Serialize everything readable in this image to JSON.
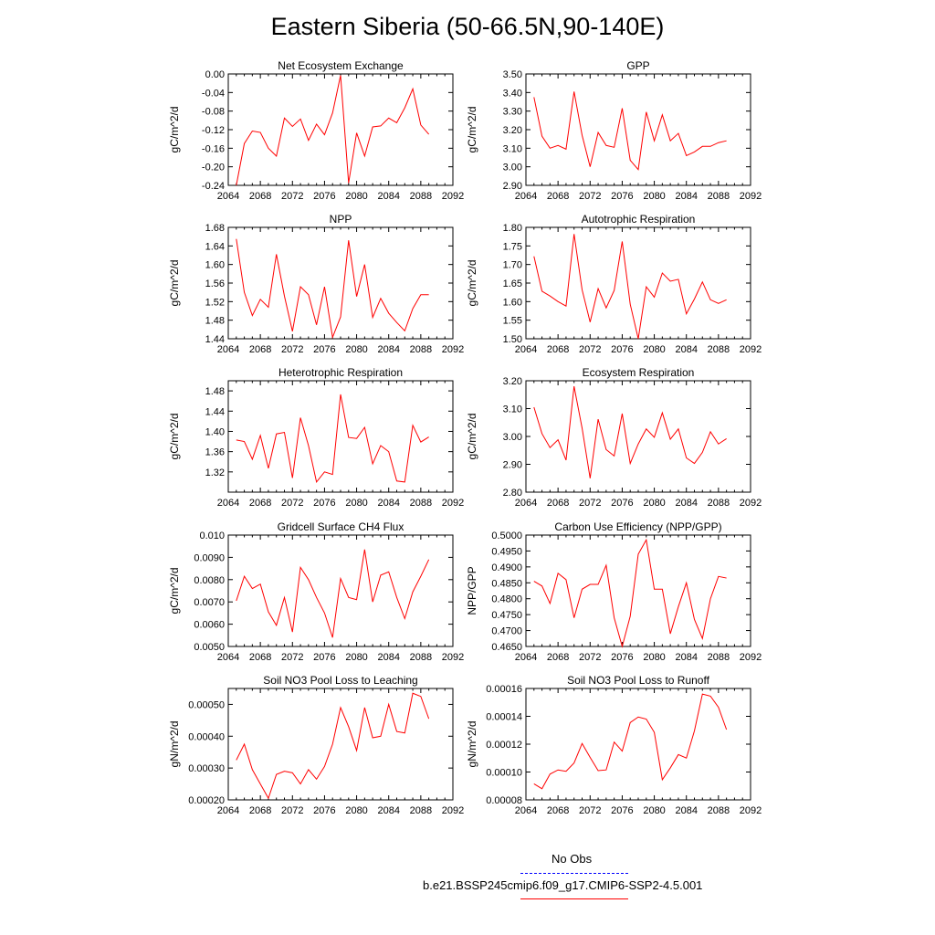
{
  "title": "Eastern Siberia (50-66.5N,90-140E)",
  "colors": {
    "model_line": "#ff0000",
    "obs_line": "#0000ff",
    "axis": "#000000"
  },
  "legend": {
    "obs_label": "No Obs",
    "model_label": "b.e21.BSSP245cmip6.f09_g17.CMIP6-SSP2-4.5.001"
  },
  "chart_data": [
    {
      "type": "line",
      "title": "Net Ecosystem Exchange",
      "xlabel": "",
      "ylabel": "gC/m^2/d",
      "xlim": [
        2064,
        2092
      ],
      "xticks": [
        2064,
        2068,
        2072,
        2076,
        2080,
        2084,
        2088,
        2092
      ],
      "ylim": [
        -0.24,
        0.0
      ],
      "yticks": [
        "-0.24",
        "-0.20",
        "-0.16",
        "-0.12",
        "-0.08",
        "-0.04",
        "0.00"
      ],
      "x": [
        2065,
        2066,
        2067,
        2068,
        2069,
        2070,
        2071,
        2072,
        2073,
        2074,
        2075,
        2076,
        2077,
        2078,
        2079,
        2080,
        2081,
        2082,
        2083,
        2084,
        2085,
        2086,
        2087,
        2088,
        2089
      ],
      "values": [
        -0.24,
        -0.15,
        -0.123,
        -0.126,
        -0.16,
        -0.177,
        -0.095,
        -0.113,
        -0.097,
        -0.143,
        -0.108,
        -0.131,
        -0.084,
        -0.003,
        -0.235,
        -0.127,
        -0.177,
        -0.114,
        -0.112,
        -0.095,
        -0.105,
        -0.073,
        -0.032,
        -0.11,
        -0.13
      ]
    },
    {
      "type": "line",
      "title": "GPP",
      "xlabel": "",
      "ylabel": "gC/m^2/d",
      "xlim": [
        2064,
        2092
      ],
      "xticks": [
        2064,
        2068,
        2072,
        2076,
        2080,
        2084,
        2088,
        2092
      ],
      "ylim": [
        2.9,
        3.5
      ],
      "yticks": [
        "2.90",
        "3.00",
        "3.10",
        "3.20",
        "3.30",
        "3.40",
        "3.50"
      ],
      "x": [
        2065,
        2066,
        2067,
        2068,
        2069,
        2070,
        2071,
        2072,
        2073,
        2074,
        2075,
        2076,
        2077,
        2078,
        2079,
        2080,
        2081,
        2082,
        2083,
        2084,
        2085,
        2086,
        2087,
        2088,
        2089
      ],
      "values": [
        3.375,
        3.165,
        3.1,
        3.115,
        3.095,
        3.405,
        3.17,
        3.0,
        3.185,
        3.115,
        3.105,
        3.315,
        3.035,
        2.985,
        3.295,
        3.14,
        3.28,
        3.14,
        3.18,
        3.06,
        3.08,
        3.11,
        3.11,
        3.13,
        3.14
      ]
    },
    {
      "type": "line",
      "title": "NPP",
      "xlabel": "",
      "ylabel": "gC/m^2/d",
      "xlim": [
        2064,
        2092
      ],
      "xticks": [
        2064,
        2068,
        2072,
        2076,
        2080,
        2084,
        2088,
        2092
      ],
      "ylim": [
        1.44,
        1.68
      ],
      "yticks": [
        "1.44",
        "1.48",
        "1.52",
        "1.56",
        "1.60",
        "1.64",
        "1.68"
      ],
      "x": [
        2065,
        2066,
        2067,
        2068,
        2069,
        2070,
        2071,
        2072,
        2073,
        2074,
        2075,
        2076,
        2077,
        2078,
        2079,
        2080,
        2081,
        2082,
        2083,
        2084,
        2085,
        2086,
        2087,
        2088,
        2089
      ],
      "values": [
        1.655,
        1.54,
        1.49,
        1.525,
        1.508,
        1.622,
        1.532,
        1.456,
        1.552,
        1.535,
        1.47,
        1.552,
        1.443,
        1.487,
        1.652,
        1.531,
        1.6,
        1.486,
        1.527,
        1.495,
        1.475,
        1.457,
        1.505,
        1.535,
        1.535
      ]
    },
    {
      "type": "line",
      "title": "Autotrophic Respiration",
      "xlabel": "",
      "ylabel": "gC/m^2/d",
      "xlim": [
        2064,
        2092
      ],
      "xticks": [
        2064,
        2068,
        2072,
        2076,
        2080,
        2084,
        2088,
        2092
      ],
      "ylim": [
        1.5,
        1.8
      ],
      "yticks": [
        "1.50",
        "1.55",
        "1.60",
        "1.65",
        "1.70",
        "1.75",
        "1.80"
      ],
      "x": [
        2065,
        2066,
        2067,
        2068,
        2069,
        2070,
        2071,
        2072,
        2073,
        2074,
        2075,
        2076,
        2077,
        2078,
        2079,
        2080,
        2081,
        2082,
        2083,
        2084,
        2085,
        2086,
        2087,
        2088,
        2089
      ],
      "values": [
        1.722,
        1.628,
        1.615,
        1.6,
        1.588,
        1.782,
        1.632,
        1.545,
        1.635,
        1.583,
        1.63,
        1.762,
        1.593,
        1.5,
        1.64,
        1.612,
        1.677,
        1.655,
        1.66,
        1.567,
        1.607,
        1.653,
        1.605,
        1.595,
        1.605
      ]
    },
    {
      "type": "line",
      "title": "Heterotrophic Respiration",
      "xlabel": "",
      "ylabel": "gC/m^2/d",
      "xlim": [
        2064,
        2092
      ],
      "xticks": [
        2064,
        2068,
        2072,
        2076,
        2080,
        2084,
        2088,
        2092
      ],
      "ylim": [
        1.28,
        1.5
      ],
      "yticks": [
        "1.32",
        "1.36",
        "1.40",
        "1.44",
        "1.48"
      ],
      "x": [
        2065,
        2066,
        2067,
        2068,
        2069,
        2070,
        2071,
        2072,
        2073,
        2074,
        2075,
        2076,
        2077,
        2078,
        2079,
        2080,
        2081,
        2082,
        2083,
        2084,
        2085,
        2086,
        2087,
        2088,
        2089
      ],
      "values": [
        1.383,
        1.38,
        1.345,
        1.392,
        1.327,
        1.395,
        1.398,
        1.308,
        1.427,
        1.372,
        1.3,
        1.32,
        1.315,
        1.473,
        1.388,
        1.386,
        1.408,
        1.336,
        1.372,
        1.36,
        1.302,
        1.3,
        1.412,
        1.379,
        1.389
      ]
    },
    {
      "type": "line",
      "title": "Ecosystem Respiration",
      "xlabel": "",
      "ylabel": "gC/m^2/d",
      "xlim": [
        2064,
        2092
      ],
      "xticks": [
        2064,
        2068,
        2072,
        2076,
        2080,
        2084,
        2088,
        2092
      ],
      "ylim": [
        2.8,
        3.2
      ],
      "yticks": [
        "2.80",
        "2.90",
        "3.00",
        "3.10",
        "3.20"
      ],
      "x": [
        2065,
        2066,
        2067,
        2068,
        2069,
        2070,
        2071,
        2072,
        2073,
        2074,
        2075,
        2076,
        2077,
        2078,
        2079,
        2080,
        2081,
        2082,
        2083,
        2084,
        2085,
        2086,
        2087,
        2088,
        2089
      ],
      "values": [
        3.105,
        3.01,
        2.96,
        2.988,
        2.915,
        3.18,
        3.03,
        2.85,
        3.062,
        2.953,
        2.93,
        3.082,
        2.903,
        2.973,
        3.027,
        2.997,
        3.085,
        2.99,
        3.027,
        2.923,
        2.903,
        2.943,
        3.017,
        2.973,
        2.992
      ]
    },
    {
      "type": "line",
      "title": "Gridcell Surface CH4 Flux",
      "xlabel": "",
      "ylabel": "gC/m^2/d",
      "xlim": [
        2064,
        2092
      ],
      "xticks": [
        2064,
        2068,
        2072,
        2076,
        2080,
        2084,
        2088,
        2092
      ],
      "ylim": [
        0.005,
        0.01
      ],
      "yticks": [
        "0.0050",
        "0.0060",
        "0.0070",
        "0.0080",
        "0.0090",
        "0.010"
      ],
      "x": [
        2065,
        2066,
        2067,
        2068,
        2069,
        2070,
        2071,
        2072,
        2073,
        2074,
        2075,
        2076,
        2077,
        2078,
        2079,
        2080,
        2081,
        2082,
        2083,
        2084,
        2085,
        2086,
        2087,
        2088,
        2089
      ],
      "values": [
        0.00705,
        0.00815,
        0.0076,
        0.0078,
        0.00655,
        0.00595,
        0.0072,
        0.00565,
        0.00855,
        0.008,
        0.0072,
        0.0065,
        0.0054,
        0.00805,
        0.0072,
        0.0071,
        0.00935,
        0.007,
        0.0082,
        0.00835,
        0.0072,
        0.00625,
        0.00745,
        0.00815,
        0.0089
      ]
    },
    {
      "type": "line",
      "title": "Carbon Use Efficiency (NPP/GPP)",
      "xlabel": "",
      "ylabel": "NPP/GPP",
      "xlim": [
        2064,
        2092
      ],
      "xticks": [
        2064,
        2068,
        2072,
        2076,
        2080,
        2084,
        2088,
        2092
      ],
      "ylim": [
        0.465,
        0.5
      ],
      "yticks": [
        "0.4650",
        "0.4700",
        "0.4750",
        "0.4800",
        "0.4850",
        "0.4900",
        "0.4950",
        "0.5000"
      ],
      "x": [
        2065,
        2066,
        2067,
        2068,
        2069,
        2070,
        2071,
        2072,
        2073,
        2074,
        2075,
        2076,
        2077,
        2078,
        2079,
        2080,
        2081,
        2082,
        2083,
        2084,
        2085,
        2086,
        2087,
        2088,
        2089
      ],
      "values": [
        0.4855,
        0.484,
        0.4785,
        0.488,
        0.486,
        0.474,
        0.483,
        0.4845,
        0.4845,
        0.4905,
        0.474,
        0.465,
        0.4745,
        0.494,
        0.4985,
        0.483,
        0.483,
        0.469,
        0.4775,
        0.485,
        0.4735,
        0.4675,
        0.48,
        0.487,
        0.4865
      ]
    },
    {
      "type": "line",
      "title": "Soil NO3 Pool Loss to Leaching",
      "xlabel": "",
      "ylabel": "gN/m^2/d",
      "xlim": [
        2064,
        2092
      ],
      "xticks": [
        2064,
        2068,
        2072,
        2076,
        2080,
        2084,
        2088,
        2092
      ],
      "ylim": [
        0.0002,
        0.00055
      ],
      "yticks": [
        "0.00020",
        "0.00030",
        "0.00040",
        "0.00050"
      ],
      "x": [
        2065,
        2066,
        2067,
        2068,
        2069,
        2070,
        2071,
        2072,
        2073,
        2074,
        2075,
        2076,
        2077,
        2078,
        2079,
        2080,
        2081,
        2082,
        2083,
        2084,
        2085,
        2086,
        2087,
        2088,
        2089
      ],
      "values": [
        0.000325,
        0.000375,
        0.000295,
        0.00025,
        0.000205,
        0.00028,
        0.00029,
        0.000285,
        0.00025,
        0.000295,
        0.000265,
        0.000305,
        0.000375,
        0.00049,
        0.00043,
        0.000355,
        0.00049,
        0.000395,
        0.0004,
        0.0005,
        0.000415,
        0.00041,
        0.000535,
        0.000525,
        0.000455
      ]
    },
    {
      "type": "line",
      "title": "Soil NO3 Pool Loss to Runoff",
      "xlabel": "",
      "ylabel": "gN/m^2/d",
      "xlim": [
        2064,
        2092
      ],
      "xticks": [
        2064,
        2068,
        2072,
        2076,
        2080,
        2084,
        2088,
        2092
      ],
      "ylim": [
        8e-05,
        0.00016
      ],
      "yticks": [
        "0.00008",
        "0.00010",
        "0.00012",
        "0.00014",
        "0.00016"
      ],
      "x": [
        2065,
        2066,
        2067,
        2068,
        2069,
        2070,
        2071,
        2072,
        2073,
        2074,
        2075,
        2076,
        2077,
        2078,
        2079,
        2080,
        2081,
        2082,
        2083,
        2084,
        2085,
        2086,
        2087,
        2088,
        2089
      ],
      "values": [
        9.15e-05,
        8.8e-05,
        9.85e-05,
        0.0001015,
        0.0001005,
        0.0001065,
        0.0001205,
        0.0001105,
        0.000101,
        0.0001015,
        0.0001215,
        0.000115,
        0.0001355,
        0.0001395,
        0.000138,
        0.0001285,
        9.45e-05,
        0.000103,
        0.0001125,
        0.00011,
        0.0001295,
        0.000156,
        0.0001545,
        0.0001465,
        0.0001305
      ]
    }
  ]
}
